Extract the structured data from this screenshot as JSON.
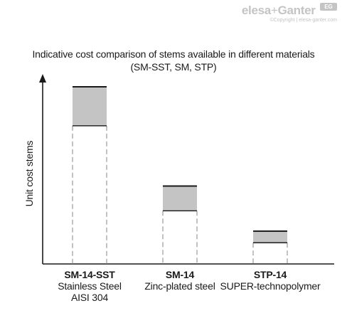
{
  "logo": {
    "brand": "elesa",
    "plus": "+",
    "brand2": "Ganter",
    "badge": "EG",
    "copyright": "©Copyright | elesa-ganter.com"
  },
  "chart_data": {
    "type": "bar",
    "title_line1": "Indicative cost comparison of stems available in different materials",
    "title_line2": "(SM-SST, SM, STP)",
    "ylabel": "Unit cost stems",
    "categories": [
      {
        "code": "SM-14-SST",
        "material": "Stainless Steel",
        "material2": "AISI 304"
      },
      {
        "code": "SM-14",
        "material": "Zinc-plated steel",
        "material2": ""
      },
      {
        "code": "STP-14",
        "material": "SUPER-technopolymer",
        "material2": ""
      }
    ],
    "range_low": [
      78,
      30,
      12
    ],
    "range_high": [
      100,
      44,
      18.5
    ],
    "ylim": [
      0,
      115
    ],
    "colors": {
      "range_fill": "#c4c4c4",
      "line": "#1a1a1a",
      "dash": "#9a9a9a"
    }
  }
}
